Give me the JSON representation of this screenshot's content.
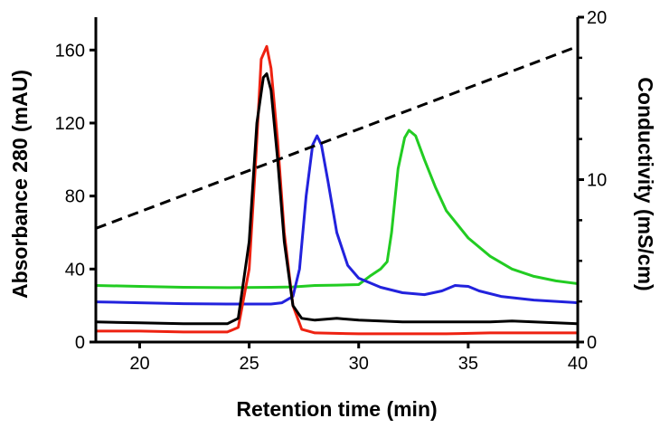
{
  "chart_data": {
    "type": "line",
    "title": "",
    "xlabel": "Retention time (min)",
    "ylabel": "Absorbance 280 (mAU)",
    "y2label": "Conductivity (mS/cm)",
    "xlim": [
      18,
      40
    ],
    "ylim": [
      0,
      178
    ],
    "y2lim": [
      0,
      20
    ],
    "xticks": [
      20,
      25,
      30,
      35,
      40
    ],
    "yticks": [
      0,
      40,
      80,
      120,
      160
    ],
    "y2ticks": [
      0,
      10,
      20
    ],
    "grid": false,
    "legend": "none",
    "series": [
      {
        "color": "#22cc22",
        "axis": "left",
        "points": [
          [
            18,
            31
          ],
          [
            20,
            30.5
          ],
          [
            22,
            30
          ],
          [
            24,
            29.8
          ],
          [
            26,
            30
          ],
          [
            27,
            30.2
          ],
          [
            28,
            31
          ],
          [
            29,
            31.2
          ],
          [
            30,
            31.5
          ],
          [
            30.5,
            36
          ],
          [
            31,
            40
          ],
          [
            31.3,
            44
          ],
          [
            31.5,
            60
          ],
          [
            31.8,
            95
          ],
          [
            32.1,
            112
          ],
          [
            32.3,
            116
          ],
          [
            32.6,
            113
          ],
          [
            33,
            100
          ],
          [
            33.5,
            85
          ],
          [
            34,
            72
          ],
          [
            35,
            57
          ],
          [
            36,
            47
          ],
          [
            37,
            40
          ],
          [
            38,
            36
          ],
          [
            39,
            33.5
          ],
          [
            40,
            32
          ]
        ]
      },
      {
        "color": "#2222dd",
        "axis": "left",
        "points": [
          [
            18,
            22
          ],
          [
            20,
            21.5
          ],
          [
            22,
            21
          ],
          [
            24,
            20.8
          ],
          [
            26,
            20.8
          ],
          [
            26.5,
            21.5
          ],
          [
            27,
            25
          ],
          [
            27.3,
            40
          ],
          [
            27.6,
            80
          ],
          [
            27.9,
            108
          ],
          [
            28.1,
            113
          ],
          [
            28.3,
            108
          ],
          [
            28.6,
            88
          ],
          [
            29,
            60
          ],
          [
            29.5,
            42
          ],
          [
            30,
            35
          ],
          [
            31,
            30
          ],
          [
            32,
            27
          ],
          [
            33,
            26
          ],
          [
            33.8,
            28
          ],
          [
            34.4,
            31
          ],
          [
            35,
            30.5
          ],
          [
            35.5,
            28
          ],
          [
            36.5,
            25
          ],
          [
            38,
            23
          ],
          [
            40,
            21.5
          ]
        ]
      },
      {
        "color": "#ee2211",
        "axis": "left",
        "points": [
          [
            18,
            6
          ],
          [
            20,
            6
          ],
          [
            22,
            5.5
          ],
          [
            24,
            5.5
          ],
          [
            24.5,
            8
          ],
          [
            25,
            40
          ],
          [
            25.3,
            100
          ],
          [
            25.55,
            155
          ],
          [
            25.8,
            162
          ],
          [
            26,
            150
          ],
          [
            26.3,
            110
          ],
          [
            26.6,
            60
          ],
          [
            27,
            20
          ],
          [
            27.4,
            7
          ],
          [
            28,
            5
          ],
          [
            30,
            4.5
          ],
          [
            32,
            4.5
          ],
          [
            34,
            4.5
          ],
          [
            36,
            5
          ],
          [
            38,
            5
          ],
          [
            40,
            5
          ]
        ]
      },
      {
        "color": "#000000",
        "axis": "left",
        "points": [
          [
            18,
            11
          ],
          [
            20,
            10.5
          ],
          [
            22,
            10
          ],
          [
            24,
            10
          ],
          [
            24.5,
            13
          ],
          [
            25,
            55
          ],
          [
            25.35,
            120
          ],
          [
            25.65,
            145
          ],
          [
            25.8,
            147
          ],
          [
            26,
            138
          ],
          [
            26.3,
            100
          ],
          [
            26.6,
            55
          ],
          [
            27,
            20
          ],
          [
            27.4,
            13
          ],
          [
            28,
            12
          ],
          [
            29,
            13
          ],
          [
            30,
            12
          ],
          [
            32,
            11
          ],
          [
            34,
            11
          ],
          [
            36,
            11
          ],
          [
            37,
            11.5
          ],
          [
            40,
            10
          ]
        ]
      },
      {
        "color": "#000000",
        "axis": "right",
        "dashed": true,
        "points": [
          [
            18,
            7
          ],
          [
            40,
            18.2
          ]
        ]
      }
    ]
  }
}
